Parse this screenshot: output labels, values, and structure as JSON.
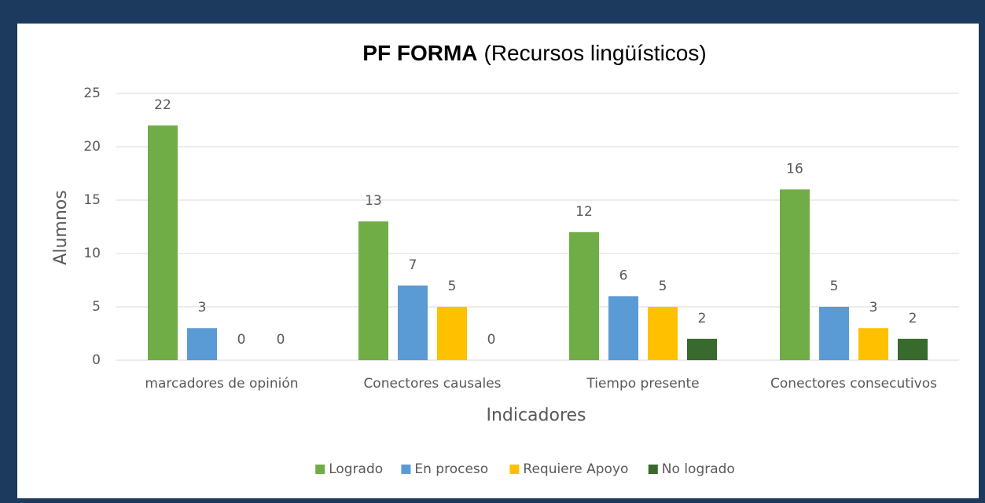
{
  "chart_data": {
    "type": "bar",
    "title": [
      "PF FORMA",
      "(Recursos lingüísticos)"
    ],
    "x_label": "Indicadores",
    "y_label": "Alumnos",
    "categories": [
      "marcadores de opinión",
      "Conectores causales",
      "Tiempo presente",
      "Conectores consecutivos"
    ],
    "series": [
      {
        "name": "Logrado",
        "color": "#70ad47",
        "values": [
          22,
          13,
          12,
          16
        ]
      },
      {
        "name": "En proceso",
        "color": "#5b9bd5",
        "values": [
          3,
          7,
          6,
          5
        ]
      },
      {
        "name": "Requiere Apoyo",
        "color": "#ffc000",
        "values": [
          0,
          5,
          5,
          3
        ]
      },
      {
        "name": "No logrado",
        "color": "#386a2e",
        "values": [
          0,
          0,
          2,
          2
        ]
      }
    ],
    "ylim": [
      0,
      25
    ],
    "yticks": [
      0,
      5,
      10,
      15,
      20,
      25
    ],
    "grid": true,
    "legend": "bottom"
  }
}
